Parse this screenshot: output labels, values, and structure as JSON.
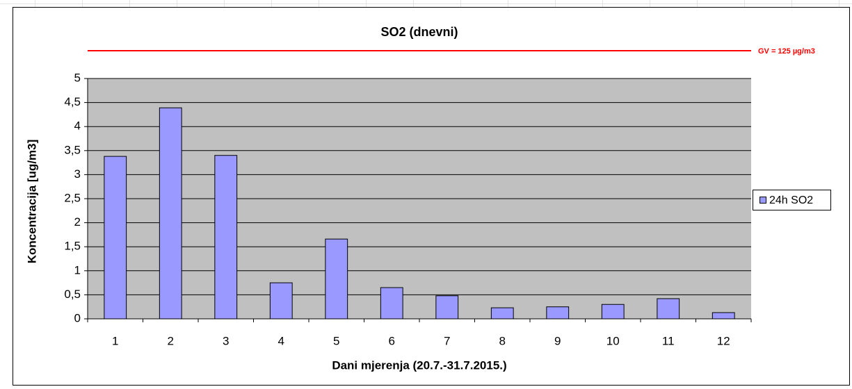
{
  "chart_data": {
    "type": "bar",
    "title": "SO2 (dnevni)",
    "x_label": "Dani mjerenja (20.7.-31.7.2015.)",
    "y_label": "Koncentracija [ug/m3]",
    "annotation": "GV = 125 µg/m3",
    "annotation_color": "#ff0000",
    "categories": [
      "1",
      "2",
      "3",
      "4",
      "5",
      "6",
      "7",
      "8",
      "9",
      "10",
      "11",
      "12"
    ],
    "series": [
      {
        "name": "24h SO2",
        "color": "#9999ff",
        "values": [
          3.38,
          4.39,
          3.4,
          0.75,
          1.66,
          0.65,
          0.48,
          0.23,
          0.25,
          0.3,
          0.42,
          0.13
        ]
      }
    ],
    "ylim": [
      0,
      5
    ],
    "yticks": [
      0,
      {
        "value": 0.5,
        "label": "0,5"
      },
      1,
      {
        "value": 1.5,
        "label": "1,5"
      },
      2,
      {
        "value": 2.5,
        "label": "2,5"
      },
      3,
      {
        "value": 3.5,
        "label": "3,5"
      },
      4,
      {
        "value": 4.5,
        "label": "4,5"
      },
      5
    ],
    "grid": true,
    "legend": "right",
    "plot_background": "#c0c0c0"
  }
}
